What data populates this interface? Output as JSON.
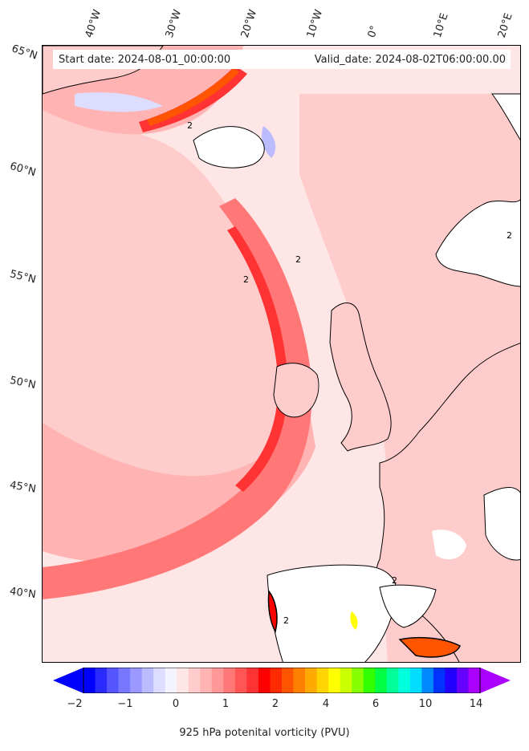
{
  "header": {
    "start_date": "Start date: 2024-08-01_00:00:00",
    "valid_date": "Valid_date: 2024-08-02T06:00:00.00"
  },
  "longitude_labels": [
    "40°W",
    "30°W",
    "20°W",
    "10°W",
    "0°",
    "10°E",
    "20°E"
  ],
  "latitude_labels": [
    "65°N",
    "60°N",
    "55°N",
    "50°N",
    "45°N",
    "40°N"
  ],
  "contour_label": "2",
  "colorbar": {
    "label": "925 hPa potenital vorticity (PVU)",
    "ticks": [
      "−2",
      "−1",
      "0",
      "1",
      "2",
      "4",
      "6",
      "10",
      "14"
    ],
    "colors": [
      "#0000ff",
      "#2a2aff",
      "#5555ff",
      "#7777ff",
      "#9999ff",
      "#bbbbff",
      "#ddddff",
      "#f4f4ff",
      "#ffe6e6",
      "#ffcccc",
      "#ffb3b3",
      "#ff9999",
      "#ff7777",
      "#ff5555",
      "#ff3333",
      "#ff0000",
      "#ff2a00",
      "#ff5500",
      "#ff8000",
      "#ffaa00",
      "#ffd400",
      "#ffff00",
      "#ccff00",
      "#88ff00",
      "#33ff00",
      "#00ff44",
      "#00ff99",
      "#00ffdd",
      "#00ddff",
      "#0088ff",
      "#0033ff",
      "#2200ff",
      "#6600ff",
      "#aa00ff"
    ]
  }
}
